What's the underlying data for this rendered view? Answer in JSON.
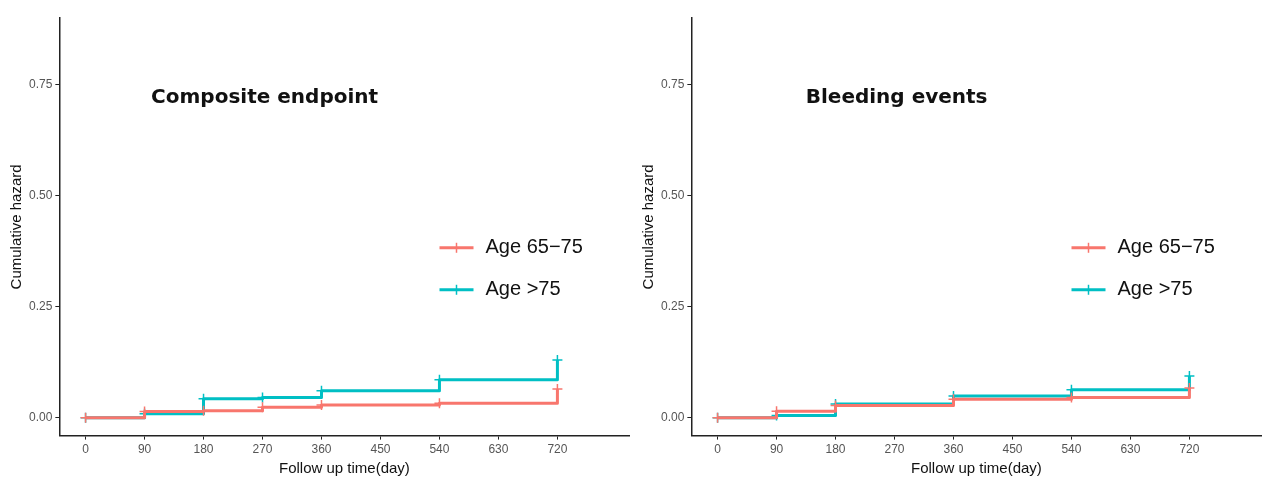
{
  "chart_data": [
    {
      "type": "step",
      "title": "Composite endpoint",
      "xlabel": "Follow up time(day)",
      "ylabel": "Cumulative hazard",
      "xlim": [
        -40,
        830
      ],
      "ylim": [
        -0.04,
        0.9
      ],
      "xticks": [
        0,
        90,
        180,
        270,
        360,
        450,
        540,
        630,
        720
      ],
      "yticks": [
        {
          "value": 0,
          "label": "0.00"
        },
        {
          "value": 0.25,
          "label": "0.25"
        },
        {
          "value": 0.5,
          "label": "0.50"
        },
        {
          "value": 0.75,
          "label": "0.75"
        }
      ],
      "grid": false,
      "legend": "right",
      "marker": "cross",
      "line_style": "solid",
      "series": [
        {
          "name": "Age 65−75",
          "color": "#f8766d",
          "x": [
            0,
            90,
            180,
            270,
            360,
            540,
            720
          ],
          "values": [
            0,
            0.014,
            0.016,
            0.024,
            0.029,
            0.033,
            0.065
          ]
        },
        {
          "name": "Age >75",
          "color": "#00bfc4",
          "x": [
            0,
            90,
            180,
            270,
            360,
            540,
            720
          ],
          "values": [
            0,
            0.009,
            0.043,
            0.046,
            0.061,
            0.086,
            0.13
          ]
        }
      ]
    },
    {
      "type": "step",
      "title": "Bleeding events",
      "xlabel": "Follow up time(day)",
      "ylabel": "Cumulative hazard",
      "xlim": [
        -40,
        830
      ],
      "ylim": [
        -0.04,
        0.9
      ],
      "xticks": [
        0,
        90,
        180,
        270,
        360,
        450,
        540,
        630,
        720
      ],
      "yticks": [
        {
          "value": 0,
          "label": "0.00"
        },
        {
          "value": 0.25,
          "label": "0.25"
        },
        {
          "value": 0.5,
          "label": "0.50"
        },
        {
          "value": 0.75,
          "label": "0.75"
        }
      ],
      "grid": false,
      "legend": "right",
      "marker": "cross",
      "line_style": "solid",
      "series": [
        {
          "name": "Age 65−75",
          "color": "#f8766d",
          "x": [
            0,
            90,
            180,
            360,
            540,
            720
          ],
          "values": [
            0,
            0.015,
            0.028,
            0.042,
            0.046,
            0.067
          ]
        },
        {
          "name": "Age >75",
          "color": "#00bfc4",
          "x": [
            0,
            90,
            180,
            360,
            540,
            720
          ],
          "values": [
            0,
            0.005,
            0.031,
            0.049,
            0.063,
            0.094
          ]
        }
      ]
    }
  ]
}
